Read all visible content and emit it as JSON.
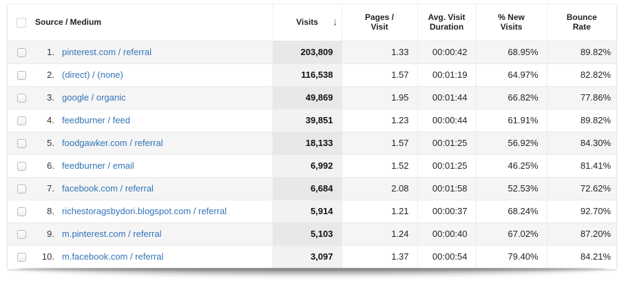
{
  "header": {
    "source_medium": "Source / Medium",
    "visits": "Visits",
    "sort_arrow": "↓",
    "pages_per_visit": "Pages / Visit",
    "avg_visit_duration": "Avg. Visit Duration",
    "pct_new_visits": "% New Visits",
    "bounce_rate": "Bounce Rate"
  },
  "sort": {
    "column": "Visits",
    "direction": "descending"
  },
  "rows": [
    {
      "rank": "1.",
      "source_medium": "pinterest.com / referral",
      "visits": "203,809",
      "pages_per_visit": "1.33",
      "avg_visit_duration": "00:00:42",
      "pct_new_visits": "68.95%",
      "bounce_rate": "89.82%"
    },
    {
      "rank": "2.",
      "source_medium": "(direct) / (none)",
      "visits": "116,538",
      "pages_per_visit": "1.57",
      "avg_visit_duration": "00:01:19",
      "pct_new_visits": "64.97%",
      "bounce_rate": "82.82%"
    },
    {
      "rank": "3.",
      "source_medium": "google / organic",
      "visits": "49,869",
      "pages_per_visit": "1.95",
      "avg_visit_duration": "00:01:44",
      "pct_new_visits": "66.82%",
      "bounce_rate": "77.86%"
    },
    {
      "rank": "4.",
      "source_medium": "feedburner / feed",
      "visits": "39,851",
      "pages_per_visit": "1.23",
      "avg_visit_duration": "00:00:44",
      "pct_new_visits": "61.91%",
      "bounce_rate": "89.82%"
    },
    {
      "rank": "5.",
      "source_medium": "foodgawker.com / referral",
      "visits": "18,133",
      "pages_per_visit": "1.57",
      "avg_visit_duration": "00:01:25",
      "pct_new_visits": "56.92%",
      "bounce_rate": "84.30%"
    },
    {
      "rank": "6.",
      "source_medium": "feedburner / email",
      "visits": "6,992",
      "pages_per_visit": "1.52",
      "avg_visit_duration": "00:01:25",
      "pct_new_visits": "46.25%",
      "bounce_rate": "81.41%"
    },
    {
      "rank": "7.",
      "source_medium": "facebook.com / referral",
      "visits": "6,684",
      "pages_per_visit": "2.08",
      "avg_visit_duration": "00:01:58",
      "pct_new_visits": "52.53%",
      "bounce_rate": "72.62%"
    },
    {
      "rank": "8.",
      "source_medium": "richestoragsbydori.blogspot.com / referral",
      "visits": "5,914",
      "pages_per_visit": "1.21",
      "avg_visit_duration": "00:00:37",
      "pct_new_visits": "68.24%",
      "bounce_rate": "92.70%"
    },
    {
      "rank": "9.",
      "source_medium": "m.pinterest.com / referral",
      "visits": "5,103",
      "pages_per_visit": "1.24",
      "avg_visit_duration": "00:00:40",
      "pct_new_visits": "67.02%",
      "bounce_rate": "87.20%"
    },
    {
      "rank": "10.",
      "source_medium": "m.facebook.com / referral",
      "visits": "3,097",
      "pages_per_visit": "1.37",
      "avg_visit_duration": "00:00:54",
      "pct_new_visits": "79.40%",
      "bounce_rate": "84.21%"
    }
  ],
  "colors": {
    "link": "#3274b8",
    "row_alt_background": "#f5f5f5",
    "visits_column_odd": "#e8e8e8",
    "visits_column_even": "#f2f2f2",
    "border": "#e9e9e9"
  }
}
